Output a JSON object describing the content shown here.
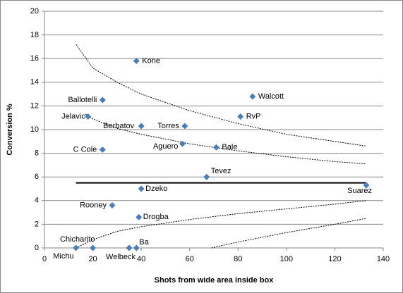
{
  "chart_data": {
    "type": "scatter",
    "x_label": "Shots from wide area inside box",
    "y_label": "Conversion %",
    "xlim": [
      0,
      140
    ],
    "xticks": [
      0,
      20,
      40,
      60,
      80,
      100,
      120,
      140
    ],
    "ylim": [
      0,
      20
    ],
    "yticks": [
      0,
      2,
      4,
      6,
      8,
      10,
      12,
      14,
      16,
      18,
      20
    ],
    "grid": true,
    "color": "#4a7ebb",
    "points": {
      "labels": [
        "Kone",
        "Walcott",
        "Ballotelli",
        "RvP",
        "Jelavic",
        "Berbatov",
        "Torres",
        "Aguero",
        "Bale",
        "C Cole",
        "Tevez",
        "Suarez",
        "Dzeko",
        "Rooney",
        "Drogba",
        "Chicharito",
        "Michu",
        "Welbeck",
        "Ba"
      ],
      "x": [
        38,
        86,
        24,
        81,
        18,
        40,
        58,
        57,
        71,
        24,
        67,
        133,
        40,
        28,
        39,
        20,
        13,
        35,
        38
      ],
      "values": [
        15.8,
        12.8,
        12.5,
        11.1,
        11.1,
        10.3,
        10.3,
        8.8,
        8.5,
        8.3,
        6.0,
        5.3,
        5.0,
        3.6,
        2.6,
        0,
        0,
        0,
        0
      ]
    },
    "mean_line": {
      "x": [
        13,
        133
      ],
      "values": [
        5.5,
        5.5
      ]
    },
    "curves": [
      {
        "x": [
          13,
          20,
          30,
          40,
          60,
          80,
          100,
          120,
          133
        ],
        "values": [
          17.2,
          15.2,
          14.0,
          13.0,
          11.6,
          10.5,
          9.6,
          9.0,
          8.6
        ]
      },
      {
        "x": [
          17,
          20,
          30,
          40,
          60,
          80,
          100,
          120,
          133
        ],
        "values": [
          11.3,
          10.9,
          10.1,
          9.6,
          8.8,
          8.2,
          7.7,
          7.3,
          7.1
        ]
      },
      {
        "x": [
          13,
          20,
          30,
          40,
          60,
          80,
          100,
          120,
          133
        ],
        "values": [
          0,
          0.7,
          1.4,
          1.8,
          2.4,
          2.9,
          3.3,
          3.7,
          4.0
        ]
      },
      {
        "x": [
          69,
          80,
          100,
          120,
          133
        ],
        "values": [
          0,
          0.5,
          1.3,
          2.0,
          2.5
        ]
      }
    ]
  }
}
